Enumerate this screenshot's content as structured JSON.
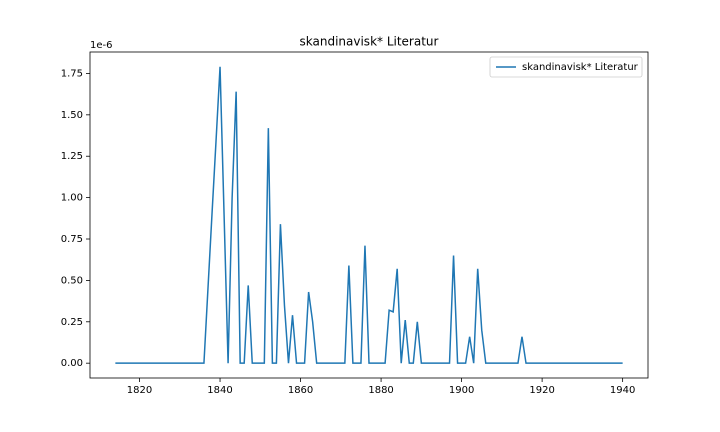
{
  "chart_data": {
    "type": "line",
    "title": "skandinavisk* Literatur",
    "x": [
      1814,
      1815,
      1816,
      1817,
      1818,
      1819,
      1820,
      1821,
      1822,
      1823,
      1824,
      1825,
      1826,
      1827,
      1828,
      1829,
      1830,
      1831,
      1832,
      1833,
      1834,
      1835,
      1836,
      1837,
      1838,
      1839,
      1840,
      1841,
      1842,
      1843,
      1844,
      1845,
      1846,
      1847,
      1848,
      1849,
      1850,
      1851,
      1852,
      1853,
      1854,
      1855,
      1856,
      1857,
      1858,
      1859,
      1860,
      1861,
      1862,
      1863,
      1864,
      1865,
      1866,
      1867,
      1868,
      1869,
      1870,
      1871,
      1872,
      1873,
      1874,
      1875,
      1876,
      1877,
      1878,
      1879,
      1880,
      1881,
      1882,
      1883,
      1884,
      1885,
      1886,
      1887,
      1888,
      1889,
      1890,
      1891,
      1892,
      1893,
      1894,
      1895,
      1896,
      1897,
      1898,
      1899,
      1900,
      1901,
      1902,
      1903,
      1904,
      1905,
      1906,
      1907,
      1908,
      1909,
      1910,
      1911,
      1912,
      1913,
      1914,
      1915,
      1916,
      1917,
      1918,
      1919,
      1920,
      1921,
      1922,
      1923,
      1924,
      1925,
      1926,
      1927,
      1928,
      1929,
      1930,
      1931,
      1932,
      1933,
      1934,
      1935,
      1936,
      1937,
      1938,
      1939,
      1940
    ],
    "series": [
      {
        "name": "skandinavisk* Literatur",
        "color": "#1f77b4",
        "values": [
          0,
          0,
          0,
          0,
          0,
          0,
          0,
          0,
          0,
          0,
          0,
          0,
          0,
          0,
          0,
          0,
          0,
          0,
          0,
          0,
          0,
          0,
          0,
          0.45,
          0.9,
          1.34,
          1.79,
          0.9,
          0,
          1.0,
          1.64,
          0,
          0,
          0.47,
          0,
          0,
          0,
          0,
          1.42,
          0,
          0,
          0.84,
          0.35,
          0,
          0.29,
          0,
          0,
          0,
          0.43,
          0.25,
          0,
          0,
          0,
          0,
          0,
          0,
          0,
          0,
          0.59,
          0,
          0,
          0,
          0.71,
          0,
          0,
          0,
          0,
          0,
          0.32,
          0.31,
          0.57,
          0,
          0.26,
          0,
          0,
          0.25,
          0,
          0,
          0,
          0,
          0,
          0,
          0,
          0,
          0.65,
          0,
          0,
          0,
          0.16,
          0,
          0.57,
          0.2,
          0,
          0,
          0,
          0,
          0,
          0,
          0,
          0,
          0,
          0.16,
          0,
          0,
          0,
          0,
          0,
          0,
          0,
          0,
          0,
          0,
          0,
          0,
          0,
          0,
          0,
          0,
          0,
          0,
          0,
          0,
          0,
          0,
          0,
          0,
          0
        ]
      }
    ],
    "xlim": [
      1807.7,
      1946.3
    ],
    "xticks": [
      1820,
      1840,
      1860,
      1880,
      1900,
      1920,
      1940
    ],
    "ylim": [
      -0.0895,
      1.8795
    ],
    "yticks": [
      {
        "value": 0,
        "label": "0.00"
      },
      {
        "value": 0.25,
        "label": "0.25"
      },
      {
        "value": 0.5,
        "label": "0.50"
      },
      {
        "value": 0.75,
        "label": "0.75"
      },
      {
        "value": 1,
        "label": "1.00"
      },
      {
        "value": 1.25,
        "label": "1.25"
      },
      {
        "value": 1.5,
        "label": "1.50"
      },
      {
        "value": 1.75,
        "label": "1.75"
      }
    ],
    "y_offset_label": "1e-6",
    "legend": "upper right",
    "grid": false
  }
}
